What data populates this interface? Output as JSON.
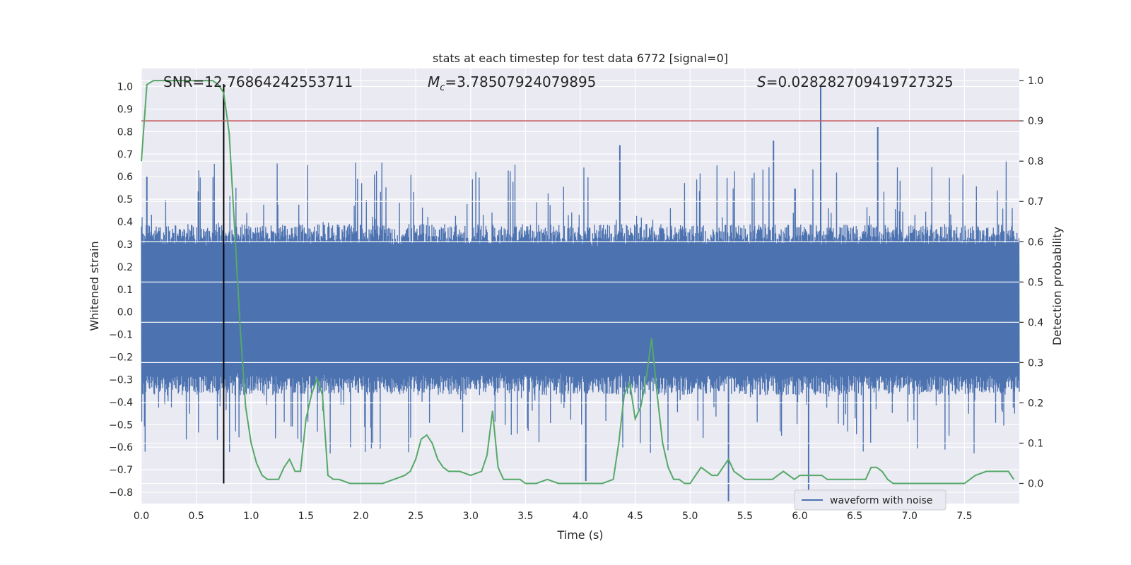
{
  "chart_data": {
    "type": "line",
    "title": "stats at each timestep for test data 6772 [signal=0]",
    "xlabel": "Time (s)",
    "ylabel_left": "Whitened strain",
    "ylabel_right": "Detection probability",
    "xlim": [
      0.0,
      8.0
    ],
    "ylim_left": [
      -0.85,
      1.08
    ],
    "ylim_right": [
      -0.05,
      1.03
    ],
    "x_ticks": [
      0.0,
      0.5,
      1.0,
      1.5,
      2.0,
      2.5,
      3.0,
      3.5,
      4.0,
      4.5,
      5.0,
      5.5,
      6.0,
      6.5,
      7.0,
      7.5
    ],
    "x_tick_labels": [
      "0.0",
      "0.5",
      "1.0",
      "1.5",
      "2.0",
      "2.5",
      "3.0",
      "3.5",
      "4.0",
      "4.5",
      "5.0",
      "5.5",
      "6.0",
      "6.5",
      "7.0",
      "7.5"
    ],
    "y_left_ticks": [
      1.0,
      0.9,
      0.8,
      0.7,
      0.6,
      0.5,
      0.4,
      0.3,
      0.2,
      0.1,
      0.0,
      -0.1,
      -0.2,
      -0.3,
      -0.4,
      -0.5,
      -0.6,
      -0.7,
      -0.8
    ],
    "y_left_tick_labels": [
      "1.0",
      "0.9",
      "0.8",
      "0.7",
      "0.6",
      "0.5",
      "0.4",
      "0.3",
      "0.2",
      "0.1",
      "0.0",
      "−0.1",
      "−0.2",
      "−0.3",
      "−0.4",
      "−0.5",
      "−0.6",
      "−0.7",
      "−0.8"
    ],
    "y_right_ticks": [
      1.0,
      0.9,
      0.8,
      0.7,
      0.6,
      0.5,
      0.4,
      0.3,
      0.2,
      0.1,
      0.0
    ],
    "y_right_tick_labels": [
      "1.0",
      "0.9",
      "0.8",
      "0.7",
      "0.6",
      "0.5",
      "0.4",
      "0.3",
      "0.2",
      "0.1",
      "0.0"
    ],
    "grid": true,
    "legend": {
      "placement": "lower-right",
      "entries": [
        "waveform with noise"
      ]
    },
    "annotations": {
      "snr_label": "SNR=12.76864242553711",
      "mc_symbol": "M",
      "mc_subscript": "c",
      "mc_value": "=3.78507924079895",
      "s_symbol": "S",
      "s_value": "=0.028282709419727325"
    },
    "threshold_right": 0.9,
    "vertical_marker_x": 0.75,
    "waveform": {
      "name": "waveform with noise",
      "x_range": [
        0.0,
        8.0
      ],
      "band_low": -0.27,
      "band_high": 0.29,
      "spikes": [
        {
          "x": 6.19,
          "y": 1.0
        },
        {
          "x": 6.71,
          "y": 0.82
        },
        {
          "x": 4.36,
          "y": 0.74
        },
        {
          "x": 5.76,
          "y": 0.76
        },
        {
          "x": 0.05,
          "y": 0.6
        },
        {
          "x": 4.05,
          "y": -0.75
        },
        {
          "x": 5.35,
          "y": -0.84
        },
        {
          "x": 6.08,
          "y": -0.79
        }
      ]
    },
    "series": [
      {
        "name": "detection probability",
        "x": [
          0.0,
          0.05,
          0.11,
          0.2,
          0.3,
          0.4,
          0.5,
          0.6,
          0.65,
          0.7,
          0.75,
          0.8,
          0.85,
          0.9,
          0.95,
          1.0,
          1.05,
          1.1,
          1.15,
          1.2,
          1.25,
          1.3,
          1.35,
          1.4,
          1.45,
          1.5,
          1.55,
          1.6,
          1.65,
          1.7,
          1.75,
          1.8,
          1.9,
          2.0,
          2.1,
          2.2,
          2.3,
          2.4,
          2.45,
          2.5,
          2.55,
          2.6,
          2.65,
          2.7,
          2.75,
          2.8,
          2.9,
          3.0,
          3.1,
          3.15,
          3.2,
          3.25,
          3.3,
          3.4,
          3.45,
          3.5,
          3.6,
          3.7,
          3.8,
          3.9,
          4.0,
          4.1,
          4.2,
          4.3,
          4.35,
          4.4,
          4.45,
          4.5,
          4.55,
          4.6,
          4.65,
          4.7,
          4.75,
          4.8,
          4.85,
          4.9,
          4.95,
          5.0,
          5.05,
          5.1,
          5.15,
          5.2,
          5.25,
          5.3,
          5.35,
          5.4,
          5.45,
          5.5,
          5.55,
          5.6,
          5.65,
          5.7,
          5.75,
          5.8,
          5.85,
          5.9,
          5.95,
          6.0,
          6.05,
          6.1,
          6.15,
          6.2,
          6.25,
          6.3,
          6.4,
          6.5,
          6.6,
          6.65,
          6.7,
          6.75,
          6.8,
          6.85,
          6.9,
          7.0,
          7.1,
          7.2,
          7.3,
          7.4,
          7.5,
          7.55,
          7.6,
          7.7,
          7.8,
          7.9,
          7.95
        ],
        "values": [
          0.8,
          0.99,
          1.0,
          1.0,
          1.0,
          1.0,
          1.0,
          1.0,
          1.0,
          0.99,
          0.97,
          0.87,
          0.63,
          0.39,
          0.19,
          0.1,
          0.05,
          0.02,
          0.01,
          0.01,
          0.01,
          0.04,
          0.06,
          0.03,
          0.03,
          0.16,
          0.22,
          0.26,
          0.22,
          0.02,
          0.01,
          0.01,
          0.0,
          0.0,
          0.0,
          0.0,
          0.01,
          0.02,
          0.03,
          0.06,
          0.11,
          0.12,
          0.1,
          0.06,
          0.04,
          0.03,
          0.03,
          0.02,
          0.03,
          0.07,
          0.18,
          0.04,
          0.01,
          0.01,
          0.01,
          0.0,
          0.0,
          0.01,
          0.0,
          0.0,
          0.0,
          0.0,
          0.0,
          0.01,
          0.1,
          0.22,
          0.25,
          0.16,
          0.19,
          0.26,
          0.36,
          0.22,
          0.1,
          0.04,
          0.01,
          0.01,
          0.0,
          0.0,
          0.02,
          0.04,
          0.03,
          0.02,
          0.02,
          0.04,
          0.06,
          0.03,
          0.02,
          0.01,
          0.01,
          0.01,
          0.01,
          0.01,
          0.01,
          0.02,
          0.03,
          0.02,
          0.01,
          0.02,
          0.02,
          0.02,
          0.02,
          0.02,
          0.01,
          0.01,
          0.01,
          0.01,
          0.01,
          0.04,
          0.04,
          0.03,
          0.01,
          0.0,
          0.0,
          0.0,
          0.0,
          0.0,
          0.0,
          0.0,
          0.0,
          0.01,
          0.02,
          0.03,
          0.03,
          0.03,
          0.01
        ]
      }
    ],
    "colors": {
      "plot_background": "#eaeaf2",
      "grid": "#ffffff",
      "waveform": "#4c72b0",
      "probability": "#55a868",
      "threshold": "#c44e52",
      "marker": "#000000"
    }
  }
}
